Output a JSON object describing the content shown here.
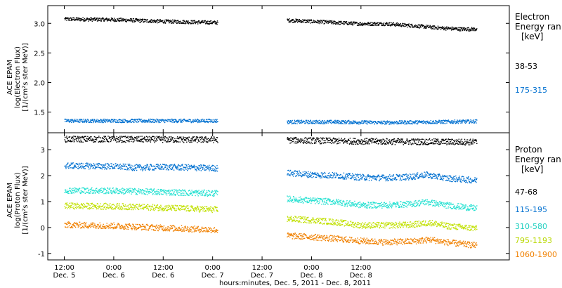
{
  "chart_data": [
    {
      "type": "scatter",
      "ylabel": [
        "ACE EPAM",
        "log(Electron Flux)",
        "[1/(cm²s ster MeV)]"
      ],
      "ylim": [
        1.15,
        3.3
      ],
      "yticks": [
        1.5,
        2.0,
        2.5,
        3.0
      ],
      "ytick_labels": [
        "1.5",
        "2.0",
        "2.5",
        "3.0"
      ],
      "legend": {
        "title": [
          "Electron",
          "Energy ran",
          "[keV]"
        ],
        "placement": "right",
        "entries": [
          "38-53",
          "175-315"
        ]
      },
      "series": [
        {
          "name": "38-53",
          "color": "#000000",
          "segments": [
            [
              [
                4.5,
                3.08
              ],
              [
                5.0,
                3.07
              ],
              [
                5.5,
                3.04
              ],
              [
                6.05,
                3.02
              ]
            ],
            [
              [
                6.75,
                3.06
              ],
              [
                7.25,
                3.02
              ],
              [
                7.5,
                3.0
              ],
              [
                7.75,
                3.0
              ],
              [
                8.0,
                2.97
              ],
              [
                8.3,
                2.93
              ],
              [
                8.5,
                2.91
              ],
              [
                8.67,
                2.91
              ]
            ]
          ]
        },
        {
          "name": "175-315",
          "color": "#0070d0",
          "segments": [
            [
              [
                4.5,
                1.36
              ],
              [
                5.0,
                1.36
              ],
              [
                5.5,
                1.36
              ],
              [
                6.05,
                1.36
              ]
            ],
            [
              [
                6.75,
                1.34
              ],
              [
                7.25,
                1.34
              ],
              [
                7.75,
                1.33
              ],
              [
                8.25,
                1.34
              ],
              [
                8.67,
                1.35
              ]
            ]
          ]
        }
      ]
    },
    {
      "type": "scatter",
      "ylabel": [
        "ACE EPAM",
        "log(Proton Flux)",
        "[1/(cm²s ster MeV)]"
      ],
      "ylim": [
        -1.25,
        3.65
      ],
      "yticks": [
        -1,
        0,
        1,
        2,
        3
      ],
      "ytick_labels": [
        "-1",
        "0",
        "1",
        "2",
        "3"
      ],
      "legend": {
        "title": [
          "Proton",
          "Energy ran",
          "[keV]"
        ],
        "placement": "right",
        "entries": [
          "47-68",
          "115-195",
          "310-580",
          "795-1193",
          "1060-1900"
        ]
      },
      "series": [
        {
          "name": "47-68",
          "color": "#000000",
          "segments": [
            [
              [
                4.5,
                3.42
              ],
              [
                5.0,
                3.42
              ],
              [
                5.5,
                3.41
              ],
              [
                6.05,
                3.4
              ]
            ],
            [
              [
                6.75,
                3.38
              ],
              [
                7.25,
                3.35
              ],
              [
                7.75,
                3.33
              ],
              [
                8.25,
                3.32
              ],
              [
                8.67,
                3.31
              ]
            ]
          ]
        },
        {
          "name": "115-195",
          "color": "#0070d0",
          "segments": [
            [
              [
                4.5,
                2.4
              ],
              [
                5.0,
                2.37
              ],
              [
                5.25,
                2.32
              ],
              [
                5.5,
                2.35
              ],
              [
                6.05,
                2.3
              ]
            ],
            [
              [
                6.75,
                2.12
              ],
              [
                7.0,
                2.05
              ],
              [
                7.25,
                2.02
              ],
              [
                7.5,
                1.95
              ],
              [
                7.75,
                1.93
              ],
              [
                8.0,
                1.97
              ],
              [
                8.15,
                2.05
              ],
              [
                8.35,
                1.92
              ],
              [
                8.67,
                1.83
              ]
            ]
          ]
        },
        {
          "name": "310-580",
          "color": "#20e0d0",
          "segments": [
            [
              [
                4.5,
                1.45
              ],
              [
                5.0,
                1.43
              ],
              [
                5.5,
                1.38
              ],
              [
                6.05,
                1.33
              ]
            ],
            [
              [
                6.75,
                1.12
              ],
              [
                7.0,
                1.05
              ],
              [
                7.25,
                1.0
              ],
              [
                7.5,
                0.88
              ],
              [
                7.75,
                0.88
              ],
              [
                8.0,
                0.92
              ],
              [
                8.15,
                1.0
              ],
              [
                8.35,
                0.88
              ],
              [
                8.67,
                0.75
              ]
            ]
          ]
        },
        {
          "name": "795-1193",
          "color": "#c0e000",
          "segments": [
            [
              [
                4.5,
                0.85
              ],
              [
                5.0,
                0.83
              ],
              [
                5.5,
                0.78
              ],
              [
                6.05,
                0.7
              ]
            ],
            [
              [
                6.75,
                0.35
              ],
              [
                7.0,
                0.3
              ],
              [
                7.25,
                0.22
              ],
              [
                7.5,
                0.1
              ],
              [
                7.75,
                0.1
              ],
              [
                8.0,
                0.12
              ],
              [
                8.2,
                0.2
              ],
              [
                8.35,
                0.08
              ],
              [
                8.67,
                -0.02
              ]
            ]
          ]
        },
        {
          "name": "1060-1900",
          "color": "#f08000",
          "segments": [
            [
              [
                4.5,
                0.12
              ],
              [
                5.0,
                0.08
              ],
              [
                5.5,
                0.0
              ],
              [
                6.05,
                -0.08
              ]
            ],
            [
              [
                6.75,
                -0.3
              ],
              [
                7.0,
                -0.35
              ],
              [
                7.25,
                -0.42
              ],
              [
                7.5,
                -0.5
              ],
              [
                7.75,
                -0.55
              ],
              [
                8.0,
                -0.52
              ],
              [
                8.2,
                -0.45
              ],
              [
                8.35,
                -0.55
              ],
              [
                8.67,
                -0.68
              ]
            ]
          ]
        }
      ]
    }
  ],
  "x_axis": {
    "range_days": [
      4.333,
      9.0
    ],
    "ticks": [
      {
        "x": 4.5,
        "time": "12:00",
        "date": "Dec. 5"
      },
      {
        "x": 5.0,
        "time": "0:00",
        "date": "Dec. 6"
      },
      {
        "x": 5.5,
        "time": "12:00",
        "date": "Dec. 6"
      },
      {
        "x": 6.0,
        "time": "0:00",
        "date": "Dec. 7"
      },
      {
        "x": 6.5,
        "time": "12:00",
        "date": "Dec. 7"
      },
      {
        "x": 7.0,
        "time": "0:00",
        "date": "Dec. 8"
      },
      {
        "x": 7.5,
        "time": "12:00",
        "date": "Dec. 8"
      }
    ],
    "label": "hours:minutes, Dec.  5, 2011 - Dec.  8, 2011"
  }
}
